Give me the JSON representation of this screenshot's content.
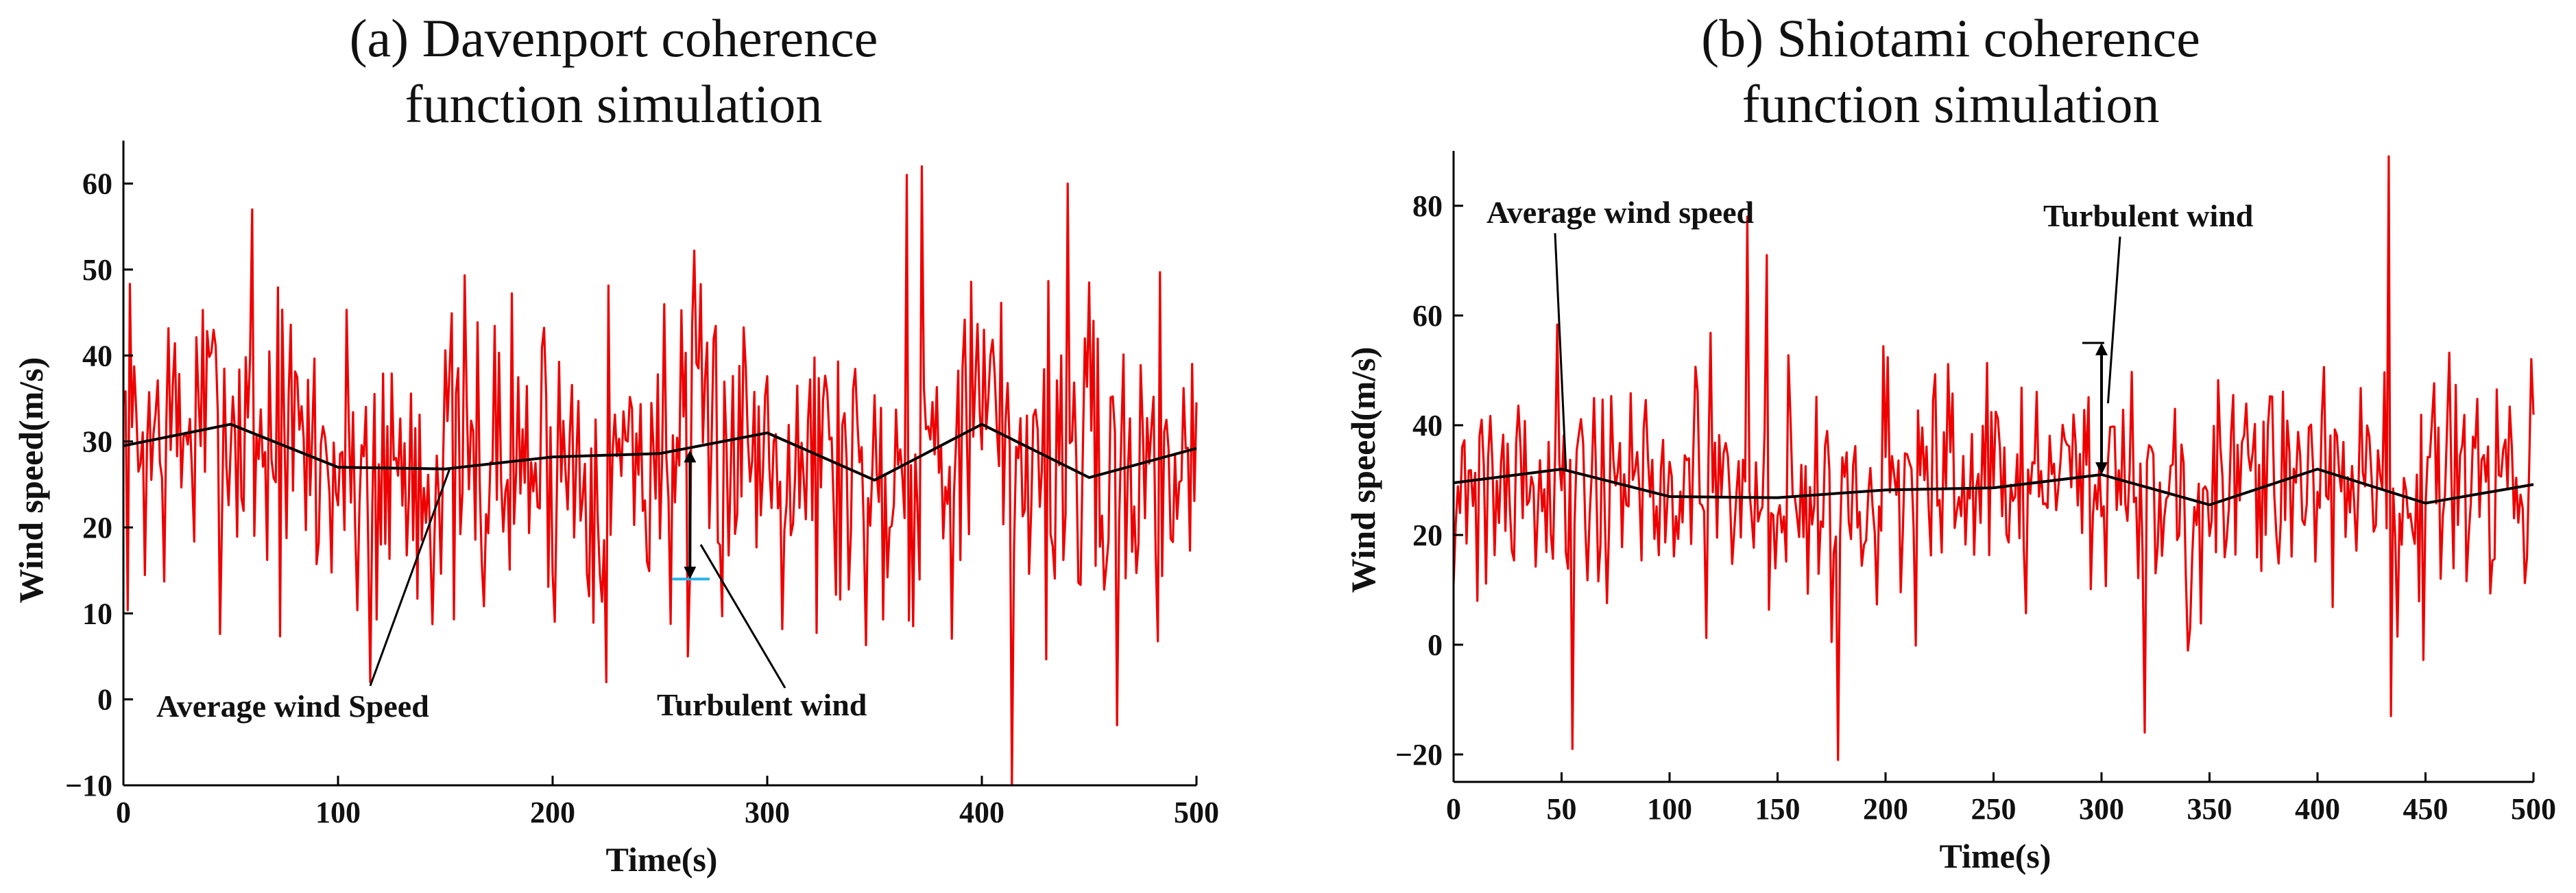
{
  "chart_data": [
    {
      "type": "line",
      "title": [
        "(a) Davenport coherence",
        "function simulation"
      ],
      "xlabel": "Time(s)",
      "ylabel": "Wind speed(m/s)",
      "xlim": [
        0,
        500
      ],
      "ylim": [
        -10,
        65
      ],
      "xticks": [
        0,
        100,
        200,
        300,
        400,
        500
      ],
      "yticks": [
        -10,
        0,
        10,
        20,
        30,
        40,
        50,
        60
      ],
      "series": [
        {
          "name": "Average wind speed",
          "color": "#000000",
          "x": [
            0,
            50,
            100,
            150,
            200,
            250,
            300,
            350,
            400,
            450,
            500
          ],
          "values": [
            29.5,
            32.0,
            27.0,
            26.8,
            28.2,
            28.6,
            31.0,
            25.5,
            32.0,
            25.8,
            29.2
          ]
        },
        {
          "name": "Turbulent wind",
          "color": "#ee0000",
          "x_step": 1,
          "seed": 7,
          "amplitude": 18,
          "spikes": [
            [
              60,
              57
            ],
            [
              115,
              2
            ],
            [
              225,
              2
            ],
            [
              263,
              5
            ],
            [
              372,
              62
            ],
            [
              414,
              -10
            ],
            [
              365,
              61
            ],
            [
              440,
              60
            ],
            [
              463,
              -3
            ]
          ]
        }
      ],
      "annotations": [
        {
          "text": "Average wind Speed",
          "x": 98,
          "y": -1,
          "target_x": 152,
          "target_y": 26.8
        },
        {
          "text": "Turbulent wind",
          "x": 248,
          "y": -1,
          "target_x": 268,
          "target_y": 18
        },
        {
          "type": "double-arrow",
          "x": 264,
          "y1": 29,
          "y2": 14
        }
      ]
    },
    {
      "type": "line",
      "title": [
        "(b) Shiotami coherence",
        "function simulation"
      ],
      "xlabel": "Time(s)",
      "ylabel": "Wind speed(m/s)",
      "xlim": [
        0,
        500
      ],
      "ylim": [
        -25,
        90
      ],
      "xticks": [
        0,
        50,
        100,
        150,
        200,
        250,
        300,
        350,
        400,
        450,
        500
      ],
      "yticks": [
        -20,
        0,
        20,
        40,
        60,
        80
      ],
      "series": [
        {
          "name": "Average wind speed",
          "color": "#000000",
          "x": [
            0,
            50,
            100,
            150,
            200,
            250,
            300,
            350,
            400,
            450,
            500
          ],
          "values": [
            29.5,
            32.0,
            27.0,
            26.8,
            28.2,
            28.6,
            31.0,
            25.5,
            32.0,
            25.8,
            29.2
          ]
        },
        {
          "name": "Turbulent wind",
          "color": "#ee0000",
          "x_step": 1,
          "seed": 21,
          "amplitude": 20,
          "spikes": [
            [
              136,
              78
            ],
            [
              178,
              -21
            ],
            [
              55,
              -19
            ],
            [
              433,
              89
            ],
            [
              434,
              -13
            ],
            [
              320,
              -16
            ],
            [
              145,
              71
            ]
          ]
        }
      ],
      "annotations": [
        {
          "text": "Average wind speed",
          "x": 15,
          "y": 78,
          "target_x": 52,
          "target_y": 32
        },
        {
          "text": "Turbulent wind",
          "x": 275,
          "y": 76,
          "target_x": 303,
          "target_y": 44
        },
        {
          "type": "double-arrow",
          "x": 300,
          "y1": 55,
          "y2": 31
        }
      ]
    }
  ]
}
